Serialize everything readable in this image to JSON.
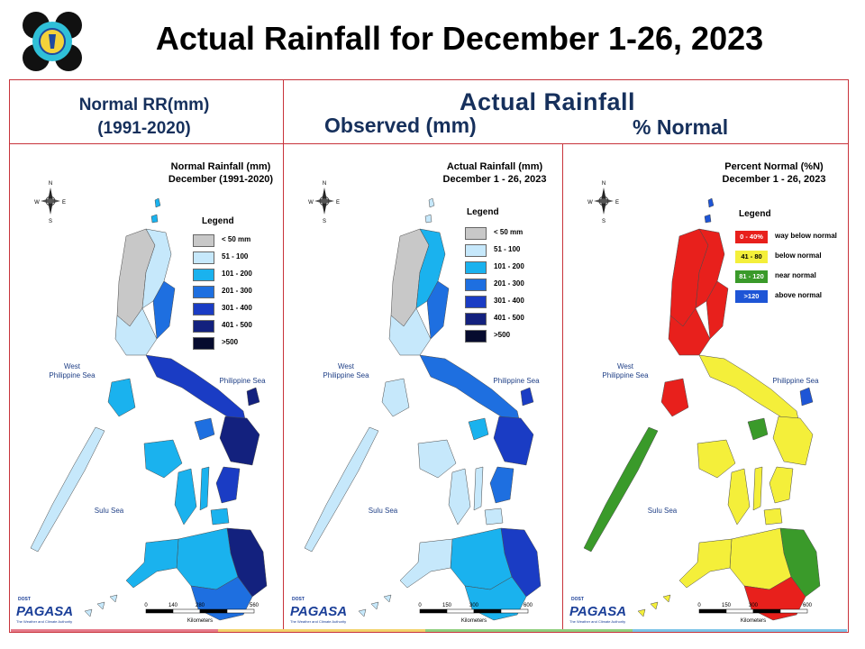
{
  "title": "Actual Rainfall for December 1-26, 2023",
  "headers": {
    "normal_line1": "Normal RR(mm)",
    "normal_line2": "(1991-2020)",
    "actual": "Actual Rainfall",
    "observed": "Observed (mm)",
    "percent": "% Normal"
  },
  "maps": [
    {
      "title_line1": "Normal Rainfall (mm)",
      "title_line2": "December (1991-2020)",
      "legend_title": "Legend",
      "legend": [
        {
          "label": "< 50 mm",
          "color": "#c8c8c8"
        },
        {
          "label": "51 - 100",
          "color": "#c6e8fb"
        },
        {
          "label": "101 - 200",
          "color": "#1ab2ee"
        },
        {
          "label": "201 - 300",
          "color": "#1e6fe0"
        },
        {
          "label": "301 - 400",
          "color": "#1a3cc4"
        },
        {
          "label": "401 - 500",
          "color": "#13217e"
        },
        {
          "label": ">500",
          "color": "#060b2e"
        }
      ],
      "sea_west_1": "West",
      "sea_west_2": "Philippine Sea",
      "sea_east": "Philippine Sea",
      "sea_south": "Sulu Sea",
      "scale_ticks": [
        "0",
        "140",
        "280",
        "560"
      ],
      "scale_unit": "Kilometers"
    },
    {
      "title_line1": "Actual Rainfall (mm)",
      "title_line2": "December 1 - 26, 2023",
      "legend_title": "Legend",
      "legend": [
        {
          "label": "< 50 mm",
          "color": "#c8c8c8"
        },
        {
          "label": "51 - 100",
          "color": "#c6e8fb"
        },
        {
          "label": "101 - 200",
          "color": "#1ab2ee"
        },
        {
          "label": "201 - 300",
          "color": "#1e6fe0"
        },
        {
          "label": "301 - 400",
          "color": "#1a3cc4"
        },
        {
          "label": "401 - 500",
          "color": "#13217e"
        },
        {
          "label": ">500",
          "color": "#060b2e"
        }
      ],
      "sea_west_1": "West",
      "sea_west_2": "Philippine Sea",
      "sea_east": "Philippine Sea",
      "sea_south": "Sulu Sea",
      "scale_ticks": [
        "0",
        "150",
        "300",
        "600"
      ],
      "scale_unit": "Kilometers"
    },
    {
      "title_line1": "Percent Normal (%N)",
      "title_line2": "December 1 - 26, 2023",
      "legend_title": "Legend",
      "legend": [
        {
          "swatch": "0 - 40%",
          "label": "way below normal",
          "color": "#e8201c"
        },
        {
          "swatch": "41 - 80",
          "label": "below normal",
          "color": "#f4ef3a"
        },
        {
          "swatch": "81 - 120",
          "label": "near normal",
          "color": "#3a9a2a"
        },
        {
          "swatch": ">120",
          "label": "above normal",
          "color": "#1e55d6"
        }
      ],
      "sea_west_1": "West",
      "sea_west_2": "Philippine Sea",
      "sea_east": "Philippine Sea",
      "sea_south": "Sulu Sea",
      "scale_ticks": [
        "0",
        "150",
        "300",
        "600"
      ],
      "scale_unit": "Kilometers"
    }
  ],
  "compass": {
    "n": "N",
    "s": "S",
    "e": "E",
    "w": "W"
  },
  "branding": {
    "dost": "DOST",
    "name": "PAGASA",
    "tagline": "The Weather and Climate Authority"
  }
}
